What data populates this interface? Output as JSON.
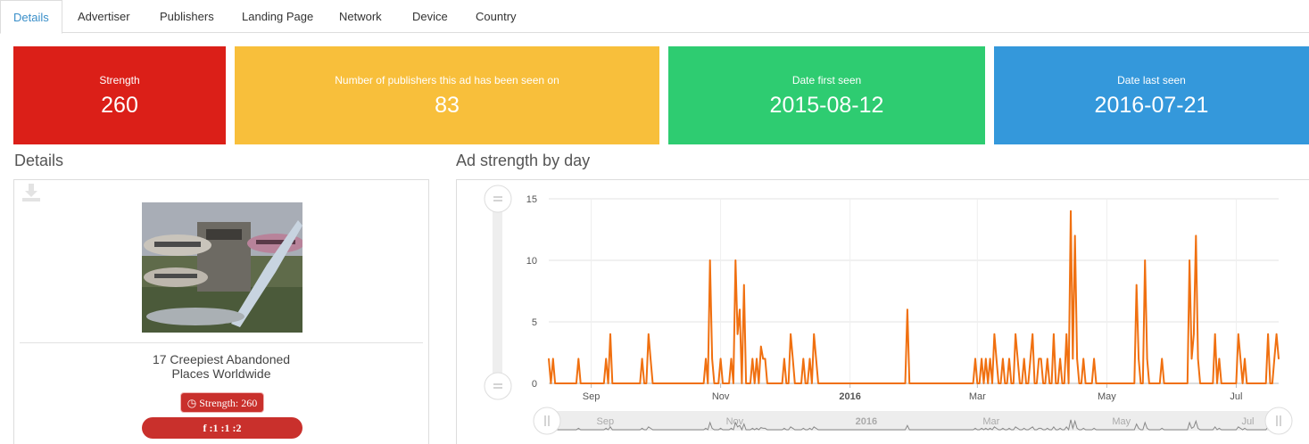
{
  "tabs": [
    "Details",
    "Advertiser",
    "Publishers",
    "Landing Page",
    "Network",
    "Device",
    "Country"
  ],
  "stats": [
    {
      "label": "Strength",
      "value": "260",
      "color": "#db1f18"
    },
    {
      "label": "Number of publishers this ad has been seen on",
      "value": "83",
      "color": "#f8bf3b"
    },
    {
      "label": "Date first seen",
      "value": "2015-08-12",
      "color": "#2ecc71"
    },
    {
      "label": "Date last seen",
      "value": "2016-07-21",
      "color": "#3498db"
    }
  ],
  "details": {
    "heading": "Details",
    "title_line1": "17 Creepiest Abandoned",
    "title_line2": "Places Worldwide",
    "strength_badge": "Strength: 260",
    "share_badge": ":1  :1  :2",
    "download_icon": "download-icon",
    "image_alt": "Abandoned futuristic pod houses"
  },
  "chart_heading": "Ad strength by day",
  "chart_data": {
    "type": "line",
    "title": "",
    "xlabel": "",
    "ylabel": "",
    "ylim": [
      0,
      15
    ],
    "yticks": [
      0,
      5,
      10,
      15
    ],
    "x_range": [
      "2015-08-12",
      "2016-07-21"
    ],
    "xtick_labels": [
      "Sep",
      "Nov",
      "2016",
      "Mar",
      "May",
      "Jul"
    ],
    "xtick_dates": [
      "2015-09-01",
      "2015-11-01",
      "2016-01-01",
      "2016-03-01",
      "2016-05-01",
      "2016-07-01"
    ],
    "grid": true,
    "color": "#f07010",
    "points": [
      [
        "2015-08-12",
        2
      ],
      [
        "2015-08-13",
        0
      ],
      [
        "2015-08-14",
        2
      ],
      [
        "2015-08-15",
        0
      ],
      [
        "2015-08-25",
        0
      ],
      [
        "2015-08-26",
        2
      ],
      [
        "2015-08-27",
        0
      ],
      [
        "2015-09-07",
        0
      ],
      [
        "2015-09-08",
        2
      ],
      [
        "2015-09-09",
        0
      ],
      [
        "2015-09-10",
        4
      ],
      [
        "2015-09-11",
        0
      ],
      [
        "2015-09-24",
        0
      ],
      [
        "2015-09-25",
        2
      ],
      [
        "2015-09-26",
        0
      ],
      [
        "2015-09-28",
        4
      ],
      [
        "2015-09-29",
        2
      ],
      [
        "2015-09-30",
        0
      ],
      [
        "2015-10-24",
        0
      ],
      [
        "2015-10-25",
        2
      ],
      [
        "2015-10-26",
        0
      ],
      [
        "2015-10-27",
        10
      ],
      [
        "2015-10-28",
        2
      ],
      [
        "2015-10-29",
        0
      ],
      [
        "2015-10-31",
        0
      ],
      [
        "2015-11-01",
        2
      ],
      [
        "2015-11-02",
        0
      ],
      [
        "2015-11-05",
        0
      ],
      [
        "2015-11-06",
        2
      ],
      [
        "2015-11-07",
        0
      ],
      [
        "2015-11-08",
        10
      ],
      [
        "2015-11-09",
        4
      ],
      [
        "2015-11-10",
        6
      ],
      [
        "2015-11-11",
        0
      ],
      [
        "2015-11-12",
        8
      ],
      [
        "2015-11-13",
        0
      ],
      [
        "2015-11-15",
        0
      ],
      [
        "2015-11-16",
        2
      ],
      [
        "2015-11-17",
        0
      ],
      [
        "2015-11-18",
        2
      ],
      [
        "2015-11-19",
        0
      ],
      [
        "2015-11-20",
        3
      ],
      [
        "2015-11-21",
        2
      ],
      [
        "2015-11-22",
        2
      ],
      [
        "2015-11-23",
        0
      ],
      [
        "2015-11-30",
        0
      ],
      [
        "2015-12-01",
        2
      ],
      [
        "2015-12-02",
        0
      ],
      [
        "2015-12-04",
        4
      ],
      [
        "2015-12-05",
        2
      ],
      [
        "2015-12-06",
        0
      ],
      [
        "2015-12-09",
        0
      ],
      [
        "2015-12-10",
        2
      ],
      [
        "2015-12-11",
        0
      ],
      [
        "2015-12-13",
        2
      ],
      [
        "2015-12-14",
        0
      ],
      [
        "2015-12-15",
        4
      ],
      [
        "2015-12-16",
        2
      ],
      [
        "2015-12-17",
        0
      ],
      [
        "2016-01-27",
        0
      ],
      [
        "2016-01-28",
        6
      ],
      [
        "2016-01-29",
        0
      ],
      [
        "2016-02-28",
        0
      ],
      [
        "2016-02-29",
        2
      ],
      [
        "2016-03-01",
        0
      ],
      [
        "2016-03-03",
        2
      ],
      [
        "2016-03-04",
        0
      ],
      [
        "2016-03-05",
        2
      ],
      [
        "2016-03-06",
        0
      ],
      [
        "2016-03-07",
        2
      ],
      [
        "2016-03-08",
        0
      ],
      [
        "2016-03-09",
        4
      ],
      [
        "2016-03-10",
        2
      ],
      [
        "2016-03-11",
        0
      ],
      [
        "2016-03-13",
        2
      ],
      [
        "2016-03-14",
        0
      ],
      [
        "2016-03-16",
        2
      ],
      [
        "2016-03-17",
        0
      ],
      [
        "2016-03-19",
        4
      ],
      [
        "2016-03-20",
        2
      ],
      [
        "2016-03-21",
        0
      ],
      [
        "2016-03-23",
        2
      ],
      [
        "2016-03-24",
        0
      ],
      [
        "2016-03-26",
        2
      ],
      [
        "2016-03-27",
        4
      ],
      [
        "2016-03-28",
        0
      ],
      [
        "2016-03-30",
        2
      ],
      [
        "2016-03-31",
        2
      ],
      [
        "2016-04-03",
        2
      ],
      [
        "2016-04-04",
        0
      ],
      [
        "2016-04-06",
        4
      ],
      [
        "2016-04-07",
        0
      ],
      [
        "2016-04-09",
        2
      ],
      [
        "2016-04-10",
        0
      ],
      [
        "2016-04-12",
        4
      ],
      [
        "2016-04-13",
        0
      ],
      [
        "2016-04-14",
        14
      ],
      [
        "2016-04-15",
        2
      ],
      [
        "2016-04-16",
        12
      ],
      [
        "2016-04-17",
        2
      ],
      [
        "2016-04-18",
        0
      ],
      [
        "2016-04-20",
        2
      ],
      [
        "2016-04-21",
        0
      ],
      [
        "2016-04-25",
        2
      ],
      [
        "2016-04-26",
        0
      ],
      [
        "2016-05-14",
        0
      ],
      [
        "2016-05-15",
        8
      ],
      [
        "2016-05-16",
        2
      ],
      [
        "2016-05-17",
        0
      ],
      [
        "2016-05-19",
        10
      ],
      [
        "2016-05-20",
        2
      ],
      [
        "2016-05-21",
        0
      ],
      [
        "2016-05-26",
        0
      ],
      [
        "2016-05-27",
        2
      ],
      [
        "2016-05-28",
        0
      ],
      [
        "2016-06-08",
        0
      ],
      [
        "2016-06-09",
        10
      ],
      [
        "2016-06-10",
        2
      ],
      [
        "2016-06-11",
        4
      ],
      [
        "2016-06-12",
        12
      ],
      [
        "2016-06-13",
        2
      ],
      [
        "2016-06-14",
        0
      ],
      [
        "2016-06-20",
        0
      ],
      [
        "2016-06-21",
        4
      ],
      [
        "2016-06-22",
        0
      ],
      [
        "2016-06-23",
        2
      ],
      [
        "2016-06-24",
        0
      ],
      [
        "2016-07-01",
        0
      ],
      [
        "2016-07-02",
        4
      ],
      [
        "2016-07-03",
        2
      ],
      [
        "2016-07-04",
        0
      ],
      [
        "2016-07-05",
        2
      ],
      [
        "2016-07-06",
        0
      ],
      [
        "2016-07-15",
        0
      ],
      [
        "2016-07-16",
        4
      ],
      [
        "2016-07-17",
        0
      ],
      [
        "2016-07-19",
        2
      ],
      [
        "2016-07-20",
        4
      ],
      [
        "2016-07-21",
        2
      ]
    ]
  }
}
